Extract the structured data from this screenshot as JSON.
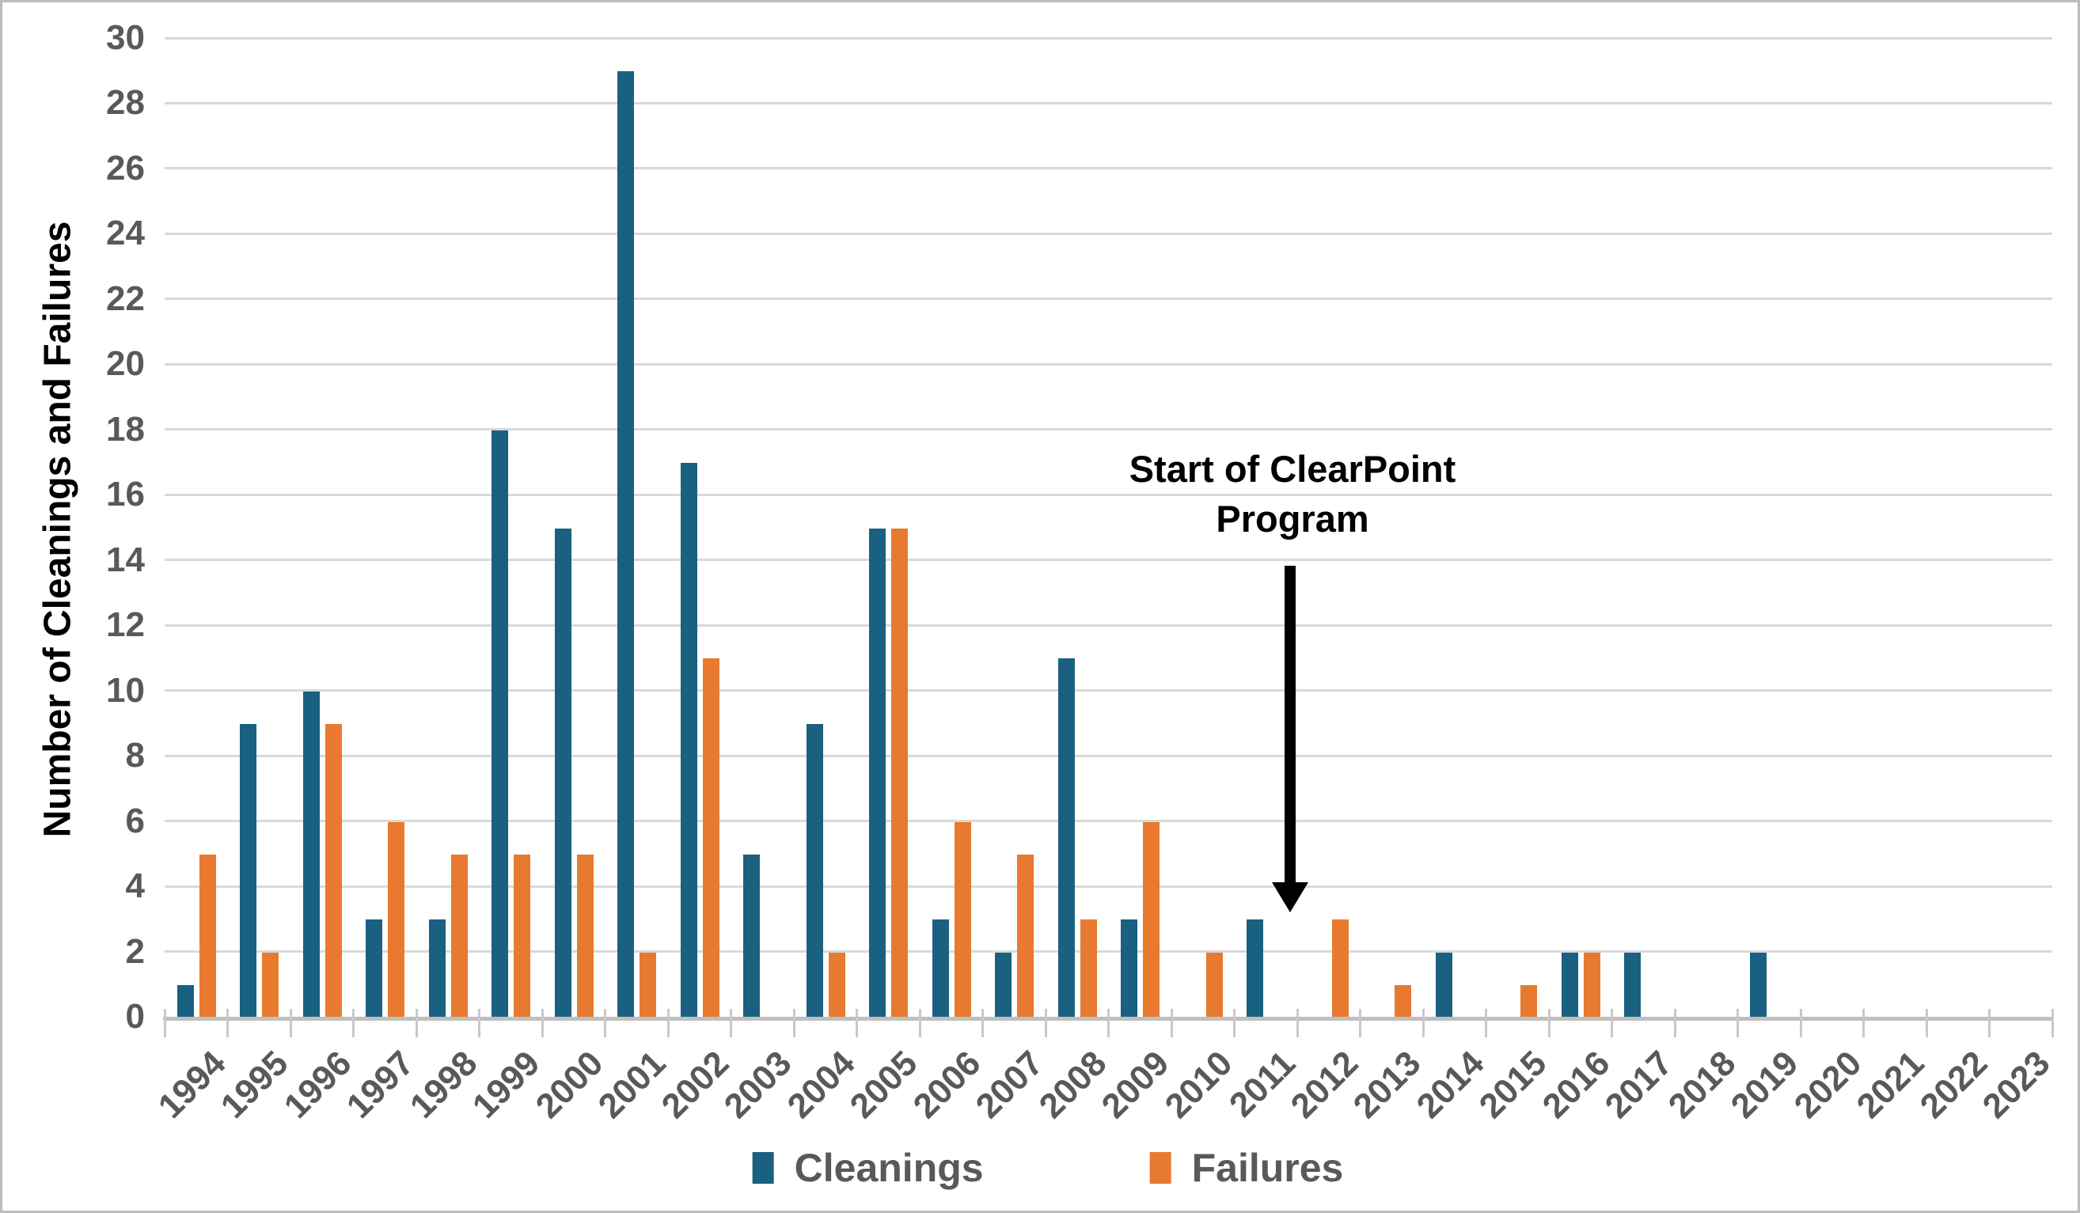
{
  "page": {
    "background": "#FFFFFF",
    "border_color": "#BDBDBD"
  },
  "chart_data": {
    "type": "bar",
    "title": "",
    "categories": [
      "1994",
      "1995",
      "1996",
      "1997",
      "1998",
      "1999",
      "2000",
      "2001",
      "2002",
      "2003",
      "2004",
      "2005",
      "2006",
      "2007",
      "2008",
      "2009",
      "2010",
      "2011",
      "2012",
      "2013",
      "2014",
      "2015",
      "2016",
      "2017",
      "2018",
      "2019",
      "2020",
      "2021",
      "2022",
      "2023"
    ],
    "series": [
      {
        "name": "Cleanings",
        "color": "#1A6080",
        "values": [
          1,
          9,
          10,
          3,
          3,
          18,
          15,
          29,
          17,
          5,
          9,
          15,
          3,
          2,
          11,
          3,
          0,
          3,
          0,
          0,
          2,
          0,
          2,
          2,
          0,
          2,
          0,
          0,
          0,
          0
        ]
      },
      {
        "name": "Failures",
        "color": "#E87A2F",
        "values": [
          5,
          2,
          9,
          6,
          5,
          5,
          5,
          2,
          11,
          0,
          2,
          15,
          6,
          5,
          3,
          6,
          2,
          0,
          3,
          1,
          0,
          1,
          2,
          0,
          0,
          0,
          0,
          0,
          0,
          0
        ]
      }
    ],
    "xlabel": "",
    "ylabel": "Number of Cleanings and Failures",
    "ylim": [
      0,
      30
    ],
    "ytick_step": 2,
    "grid": true,
    "gridline_color": "#D9D9D9",
    "axis_color": "#BFBFBF",
    "tick_color": "#C9C9C9",
    "tick_label_color": "#595959",
    "legend_position": "bottom-center",
    "annotation": {
      "text_line1": "Start of ClearPoint",
      "text_line2": "Program",
      "color": "#000000",
      "arrow_points_between": [
        "2011",
        "2012"
      ]
    }
  }
}
